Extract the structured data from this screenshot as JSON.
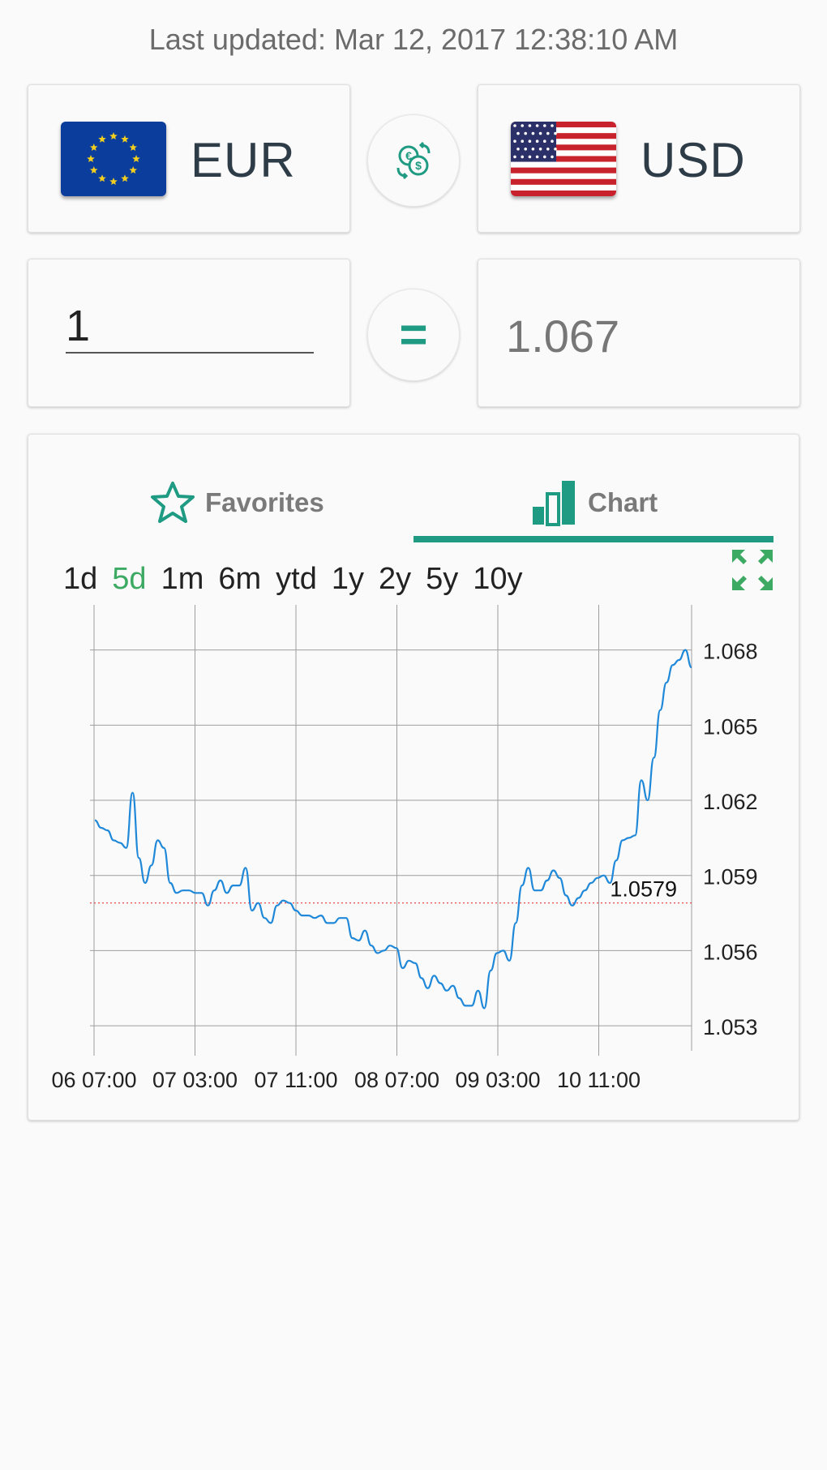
{
  "last_updated": "Last updated: Mar 12, 2017 12:38:10 AM",
  "from_currency": {
    "code": "EUR",
    "flag_icon": "eu-flag-icon"
  },
  "to_currency": {
    "code": "USD",
    "flag_icon": "us-flag-icon"
  },
  "swap_icon": "currency-swap-icon",
  "equals_symbol": "=",
  "amount": {
    "value": "1"
  },
  "result": "1.067",
  "tabs": [
    {
      "label": "Favorites",
      "icon": "star-outline-icon",
      "active": false
    },
    {
      "label": "Chart",
      "icon": "bar-chart-icon",
      "active": true
    }
  ],
  "ranges": [
    "1d",
    "5d",
    "1m",
    "6m",
    "ytd",
    "1y",
    "2y",
    "5y",
    "10y"
  ],
  "active_range": "5d",
  "colors": {
    "accent": "#1e9b82",
    "range_active": "#3daa63",
    "line": "#1f88d8",
    "reference": "#e53935"
  },
  "chart_data": {
    "type": "line",
    "x_tick_labels": [
      "06 07:00",
      "07 03:00",
      "07 11:00",
      "08 07:00",
      "09 03:00",
      "10 11:00"
    ],
    "y_tick_labels": [
      "1.068",
      "1.065",
      "1.062",
      "1.059",
      "1.056",
      "1.053"
    ],
    "ylim": [
      1.052,
      1.0698
    ],
    "grid": true,
    "reference_line": {
      "value": 1.0579,
      "label": "1.0579"
    },
    "series": [
      {
        "values": [
          1.0612,
          1.0609,
          1.0608,
          1.0604,
          1.0603,
          1.0601,
          1.0623,
          1.0597,
          1.0587,
          1.0594,
          1.0604,
          1.0601,
          1.0587,
          1.0583,
          1.0584,
          1.0584,
          1.0583,
          1.0583,
          1.0578,
          1.0584,
          1.0588,
          1.0583,
          1.0586,
          1.0586,
          1.0593,
          1.0576,
          1.0579,
          1.0573,
          1.0571,
          1.0578,
          1.058,
          1.0579,
          1.0576,
          1.0574,
          1.0574,
          1.0573,
          1.0574,
          1.0571,
          1.0571,
          1.0573,
          1.0573,
          1.0565,
          1.0564,
          1.0568,
          1.0562,
          1.0559,
          1.056,
          1.0562,
          1.0561,
          1.0553,
          1.0556,
          1.0555,
          1.0549,
          1.0545,
          1.055,
          1.0547,
          1.0544,
          1.0546,
          1.0541,
          1.0538,
          1.0538,
          1.0544,
          1.0537,
          1.0552,
          1.0559,
          1.056,
          1.0556,
          1.0571,
          1.0586,
          1.0593,
          1.0584,
          1.0584,
          1.0588,
          1.0592,
          1.0589,
          1.0582,
          1.0578,
          1.0581,
          1.0584,
          1.0587,
          1.0589,
          1.059,
          1.0587,
          1.0596,
          1.0604,
          1.0605,
          1.0606,
          1.0628,
          1.062,
          1.0637,
          1.0656,
          1.0667,
          1.0674,
          1.0676,
          1.068,
          1.0673
        ]
      }
    ]
  }
}
